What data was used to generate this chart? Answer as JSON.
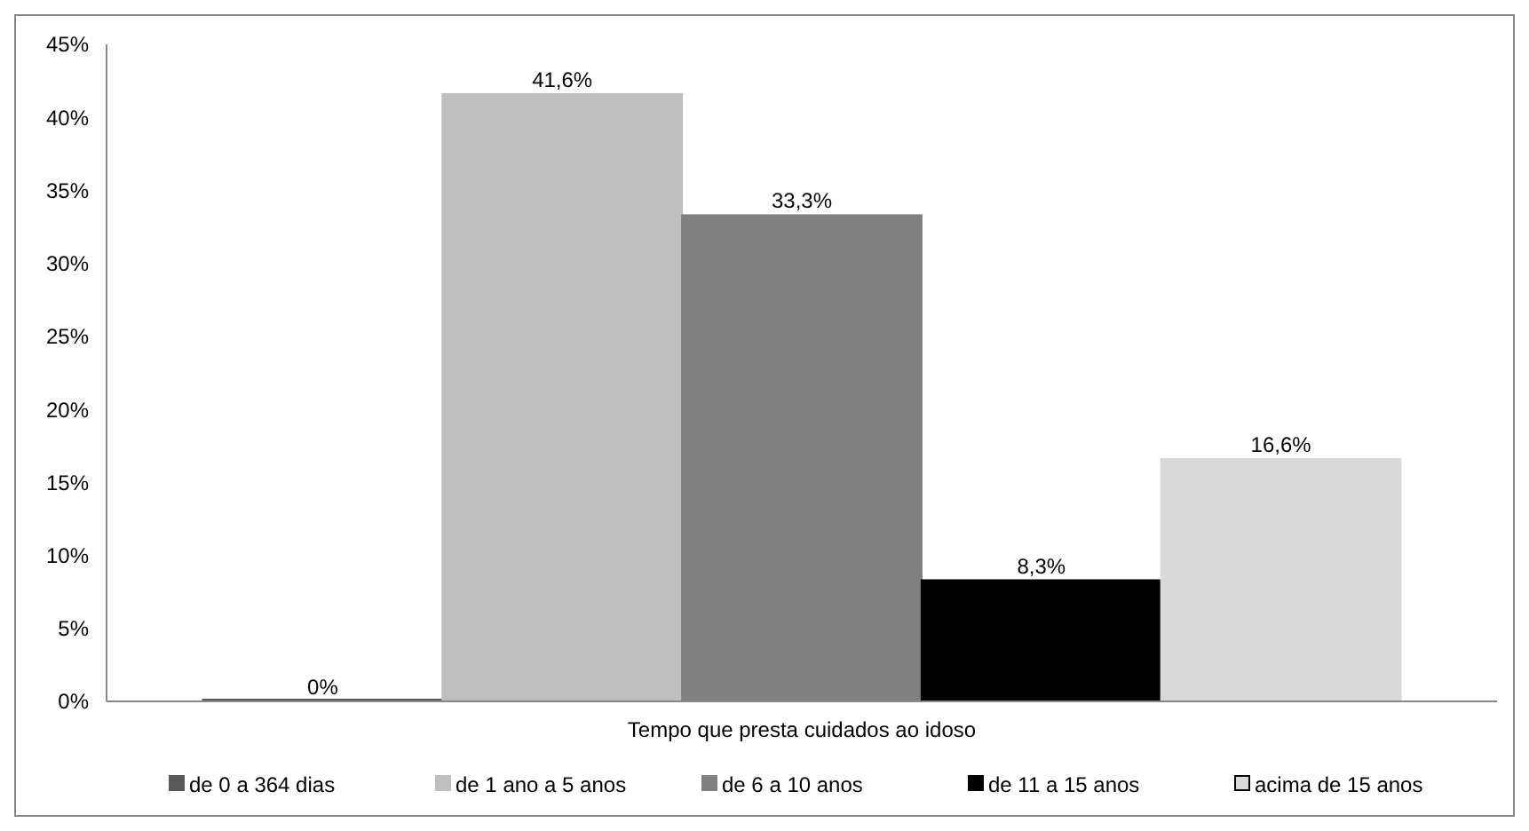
{
  "chart_data": {
    "type": "bar",
    "categories": [
      "Tempo que presta cuidados ao idoso"
    ],
    "series": [
      {
        "name": "de 0 a 364 dias",
        "color": "#595959",
        "values": [
          0
        ],
        "value_labels": [
          "0%"
        ]
      },
      {
        "name": "de 1 ano a 5 anos",
        "color": "#bfbfbf",
        "values": [
          41.6
        ],
        "value_labels": [
          "41,6%"
        ]
      },
      {
        "name": "de 6 a 10 anos",
        "color": "#808080",
        "values": [
          33.3
        ],
        "value_labels": [
          "33,3%"
        ]
      },
      {
        "name": "de 11 a 15 anos",
        "color": "#000000",
        "values": [
          8.3
        ],
        "value_labels": [
          "8,3%"
        ]
      },
      {
        "name": "acima de 15 anos",
        "color": "#d9d9d9",
        "values": [
          16.6
        ],
        "value_labels": [
          "16,6%"
        ]
      }
    ],
    "ylim": [
      0,
      45
    ],
    "yticks": [
      {
        "value": 0,
        "label": "0%"
      },
      {
        "value": 5,
        "label": "5%"
      },
      {
        "value": 10,
        "label": "10%"
      },
      {
        "value": 15,
        "label": "15%"
      },
      {
        "value": 20,
        "label": "20%"
      },
      {
        "value": 25,
        "label": "25%"
      },
      {
        "value": 30,
        "label": "30%"
      },
      {
        "value": 35,
        "label": "35%"
      },
      {
        "value": 40,
        "label": "40%"
      },
      {
        "value": 45,
        "label": "45%"
      }
    ],
    "grid": false,
    "legend": "bottom"
  }
}
